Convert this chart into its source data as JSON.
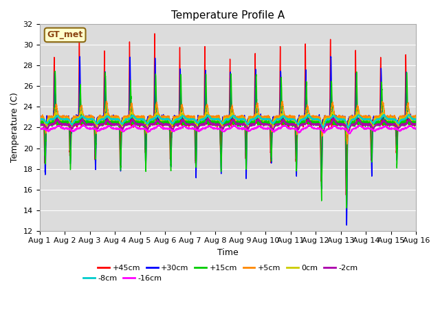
{
  "title": "Temperature Profile A",
  "xlabel": "Time",
  "ylabel": "Temperature (C)",
  "ylim": [
    12,
    32
  ],
  "xlim": [
    0,
    15
  ],
  "xtick_labels": [
    "Aug 1",
    "Aug 2",
    "Aug 3",
    "Aug 4",
    "Aug 5",
    "Aug 6",
    "Aug 7",
    "Aug 8",
    "Aug 9",
    "Aug 10",
    "Aug 11",
    "Aug 12",
    "Aug 13",
    "Aug 14",
    "Aug 15",
    "Aug 16"
  ],
  "ytick_values": [
    12,
    14,
    16,
    18,
    20,
    22,
    24,
    26,
    28,
    30,
    32
  ],
  "series": [
    {
      "label": "+45cm",
      "color": "#FF0000"
    },
    {
      "label": "+30cm",
      "color": "#0000FF"
    },
    {
      "label": "+15cm",
      "color": "#00CC00"
    },
    {
      "label": "+5cm",
      "color": "#FF8800"
    },
    {
      "label": "0cm",
      "color": "#CCCC00"
    },
    {
      "label": "-2cm",
      "color": "#AA00AA"
    },
    {
      "label": "-8cm",
      "color": "#00CCCC"
    },
    {
      "label": "-16cm",
      "color": "#FF00FF"
    }
  ],
  "gt_met_label": "GT_met",
  "background_color": "#DCDCDC",
  "title_fontsize": 11,
  "axis_label_fontsize": 9,
  "tick_fontsize": 8,
  "legend_fontsize": 8
}
